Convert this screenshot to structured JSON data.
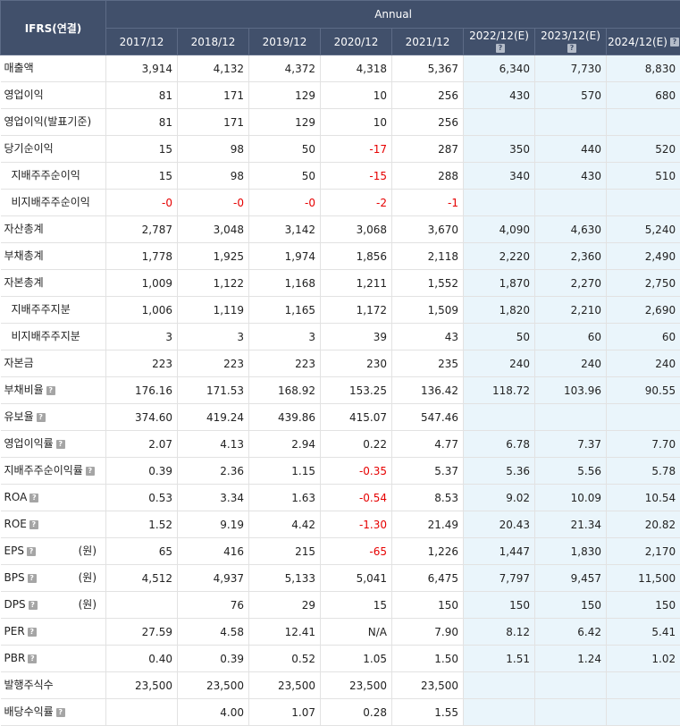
{
  "header": {
    "corner": "IFRS(연결)",
    "group": "Annual",
    "years": [
      {
        "label": "2017/12",
        "est": false
      },
      {
        "label": "2018/12",
        "est": false
      },
      {
        "label": "2019/12",
        "est": false
      },
      {
        "label": "2020/12",
        "est": false
      },
      {
        "label": "2021/12",
        "est": false
      },
      {
        "label": "2022/12(E)",
        "est": true
      },
      {
        "label": "2023/12(E)",
        "est": true
      },
      {
        "label": "2024/12(E)",
        "est": true
      }
    ]
  },
  "rows": [
    {
      "label": "매출액",
      "sub": false,
      "help": false,
      "unit": "",
      "values": [
        "3,914",
        "4,132",
        "4,372",
        "4,318",
        "5,367",
        "6,340",
        "7,730",
        "8,830"
      ]
    },
    {
      "label": "영업이익",
      "sub": false,
      "help": false,
      "unit": "",
      "values": [
        "81",
        "171",
        "129",
        "10",
        "256",
        "430",
        "570",
        "680"
      ]
    },
    {
      "label": "영업이익(발표기준)",
      "sub": false,
      "help": false,
      "unit": "",
      "values": [
        "81",
        "171",
        "129",
        "10",
        "256",
        "",
        "",
        ""
      ]
    },
    {
      "label": "당기순이익",
      "sub": false,
      "help": false,
      "unit": "",
      "values": [
        "15",
        "98",
        "50",
        "-17",
        "287",
        "350",
        "440",
        "520"
      ]
    },
    {
      "label": "지배주주순이익",
      "sub": true,
      "help": false,
      "unit": "",
      "values": [
        "15",
        "98",
        "50",
        "-15",
        "288",
        "340",
        "430",
        "510"
      ]
    },
    {
      "label": "비지배주주순이익",
      "sub": true,
      "help": false,
      "unit": "",
      "values": [
        "-0",
        "-0",
        "-0",
        "-2",
        "-1",
        "",
        "",
        ""
      ]
    },
    {
      "label": "자산총계",
      "sub": false,
      "help": false,
      "unit": "",
      "values": [
        "2,787",
        "3,048",
        "3,142",
        "3,068",
        "3,670",
        "4,090",
        "4,630",
        "5,240"
      ]
    },
    {
      "label": "부채총계",
      "sub": false,
      "help": false,
      "unit": "",
      "values": [
        "1,778",
        "1,925",
        "1,974",
        "1,856",
        "2,118",
        "2,220",
        "2,360",
        "2,490"
      ]
    },
    {
      "label": "자본총계",
      "sub": false,
      "help": false,
      "unit": "",
      "values": [
        "1,009",
        "1,122",
        "1,168",
        "1,211",
        "1,552",
        "1,870",
        "2,270",
        "2,750"
      ]
    },
    {
      "label": "지배주주지분",
      "sub": true,
      "help": false,
      "unit": "",
      "values": [
        "1,006",
        "1,119",
        "1,165",
        "1,172",
        "1,509",
        "1,820",
        "2,210",
        "2,690"
      ]
    },
    {
      "label": "비지배주주지분",
      "sub": true,
      "help": false,
      "unit": "",
      "values": [
        "3",
        "3",
        "3",
        "39",
        "43",
        "50",
        "60",
        "60"
      ]
    },
    {
      "label": "자본금",
      "sub": false,
      "help": false,
      "unit": "",
      "values": [
        "223",
        "223",
        "223",
        "230",
        "235",
        "240",
        "240",
        "240"
      ]
    },
    {
      "label": "부채비율",
      "sub": false,
      "help": true,
      "unit": "",
      "values": [
        "176.16",
        "171.53",
        "168.92",
        "153.25",
        "136.42",
        "118.72",
        "103.96",
        "90.55"
      ]
    },
    {
      "label": "유보율",
      "sub": false,
      "help": true,
      "unit": "",
      "values": [
        "374.60",
        "419.24",
        "439.86",
        "415.07",
        "547.46",
        "",
        "",
        ""
      ]
    },
    {
      "label": "영업이익률",
      "sub": false,
      "help": true,
      "unit": "",
      "values": [
        "2.07",
        "4.13",
        "2.94",
        "0.22",
        "4.77",
        "6.78",
        "7.37",
        "7.70"
      ]
    },
    {
      "label": "지배주주순이익률",
      "sub": false,
      "help": true,
      "unit": "",
      "values": [
        "0.39",
        "2.36",
        "1.15",
        "-0.35",
        "5.37",
        "5.36",
        "5.56",
        "5.78"
      ]
    },
    {
      "label": "ROA",
      "sub": false,
      "help": true,
      "unit": "",
      "values": [
        "0.53",
        "3.34",
        "1.63",
        "-0.54",
        "8.53",
        "9.02",
        "10.09",
        "10.54"
      ]
    },
    {
      "label": "ROE",
      "sub": false,
      "help": true,
      "unit": "",
      "values": [
        "1.52",
        "9.19",
        "4.42",
        "-1.30",
        "21.49",
        "20.43",
        "21.34",
        "20.82"
      ]
    },
    {
      "label": "EPS",
      "sub": false,
      "help": true,
      "unit": "(원)",
      "values": [
        "65",
        "416",
        "215",
        "-65",
        "1,226",
        "1,447",
        "1,830",
        "2,170"
      ]
    },
    {
      "label": "BPS",
      "sub": false,
      "help": true,
      "unit": "(원)",
      "values": [
        "4,512",
        "4,937",
        "5,133",
        "5,041",
        "6,475",
        "7,797",
        "9,457",
        "11,500"
      ]
    },
    {
      "label": "DPS",
      "sub": false,
      "help": true,
      "unit": "(원)",
      "values": [
        "",
        "76",
        "29",
        "15",
        "150",
        "150",
        "150",
        "150"
      ]
    },
    {
      "label": "PER",
      "sub": false,
      "help": true,
      "unit": "",
      "values": [
        "27.59",
        "4.58",
        "12.41",
        "N/A",
        "7.90",
        "8.12",
        "6.42",
        "5.41"
      ]
    },
    {
      "label": "PBR",
      "sub": false,
      "help": true,
      "unit": "",
      "values": [
        "0.40",
        "0.39",
        "0.52",
        "1.05",
        "1.50",
        "1.51",
        "1.24",
        "1.02"
      ]
    },
    {
      "label": "발행주식수",
      "sub": false,
      "help": false,
      "unit": "",
      "values": [
        "23,500",
        "23,500",
        "23,500",
        "23,500",
        "23,500",
        "",
        "",
        ""
      ]
    },
    {
      "label": "배당수익률",
      "sub": false,
      "help": true,
      "unit": "",
      "values": [
        "",
        "4.00",
        "1.07",
        "0.28",
        "1.55",
        "",
        "",
        ""
      ]
    }
  ],
  "colors": {
    "header_bg": "#41506b",
    "estimate_bg": "#eaf5fb",
    "negative": "#e60000"
  },
  "icons": {
    "help": "question-mark-icon"
  }
}
